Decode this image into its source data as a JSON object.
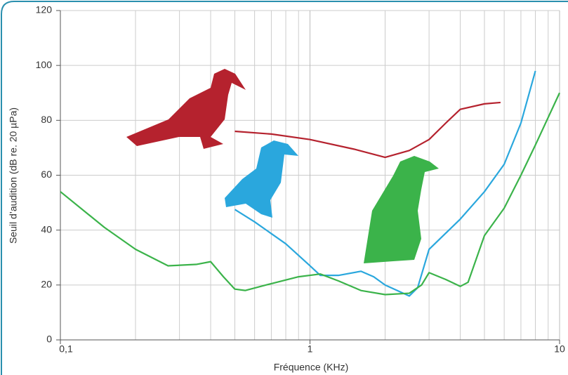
{
  "chart_data": {
    "type": "line",
    "xlabel": "Fréquence (KHz)",
    "ylabel": "Seuil d’audition (dB re. 20 µPa)",
    "xscale": "log",
    "xlim": [
      0.1,
      10
    ],
    "xticks": [
      {
        "value": 0.1,
        "label": "0,1"
      },
      1,
      10
    ],
    "ylim": [
      0,
      120
    ],
    "yticks": [
      0,
      20,
      40,
      60,
      80,
      100,
      120
    ],
    "grid": true,
    "series": [
      {
        "color": "#b5222e",
        "x": [
          0.5,
          0.7,
          1,
          1.5,
          2,
          2.5,
          3,
          3.5,
          4,
          5,
          5.8
        ],
        "values": [
          76,
          75,
          73,
          69.5,
          66.5,
          69,
          73,
          79,
          84,
          86,
          86.5
        ]
      },
      {
        "color": "#2aa7dd",
        "x": [
          0.5,
          0.6,
          0.8,
          1,
          1.1,
          1.3,
          1.6,
          1.8,
          2,
          2.5,
          2.7,
          3,
          4,
          5,
          6,
          7,
          8
        ],
        "values": [
          47.5,
          43,
          35,
          27,
          23.5,
          23.5,
          25,
          23,
          20,
          16,
          19,
          33,
          44,
          54,
          64,
          79,
          98
        ]
      },
      {
        "color": "#3bb34a",
        "x": [
          0.1,
          0.15,
          0.2,
          0.27,
          0.35,
          0.4,
          0.45,
          0.5,
          0.55,
          0.7,
          0.9,
          1.1,
          1.3,
          1.6,
          2,
          2.5,
          2.8,
          3,
          3.5,
          4,
          4.3,
          5,
          6,
          7,
          8,
          10
        ],
        "values": [
          54,
          41,
          33,
          27,
          27.5,
          28.5,
          23,
          18.5,
          18,
          20.5,
          23,
          24,
          21.5,
          18,
          16.5,
          17,
          20,
          24.5,
          22,
          19.5,
          21,
          38,
          48,
          60,
          71,
          90
        ]
      }
    ]
  }
}
